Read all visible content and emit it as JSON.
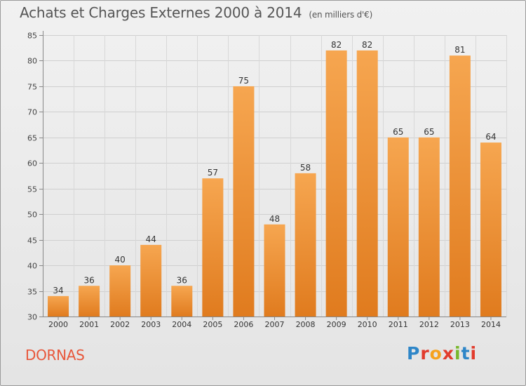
{
  "header": {
    "title": "Achats et Charges Externes 2000 à 2014",
    "unit": "(en milliers d'€)"
  },
  "footer": {
    "commune": "DORNAS",
    "logo": [
      "P",
      "r",
      "o",
      "x",
      "i",
      "t",
      "i"
    ]
  },
  "colors": {
    "bar_top": "#f6a650",
    "bar_bottom": "#e07b1e",
    "commune": "#e8563a"
  },
  "chart_data": {
    "type": "bar",
    "title": "Achats et Charges Externes 2000 à 2014",
    "ylabel": "(en milliers d'€)",
    "xlabel": "",
    "categories": [
      "2000",
      "2001",
      "2002",
      "2003",
      "2004",
      "2005",
      "2006",
      "2007",
      "2008",
      "2009",
      "2010",
      "2011",
      "2012",
      "2013",
      "2014"
    ],
    "values": [
      34,
      36,
      40,
      44,
      36,
      57,
      75,
      48,
      58,
      82,
      82,
      65,
      65,
      81,
      64
    ],
    "ylim": [
      30,
      85
    ],
    "yticks": [
      30,
      35,
      40,
      45,
      50,
      55,
      60,
      65,
      70,
      75,
      80,
      85
    ],
    "grid": true
  }
}
